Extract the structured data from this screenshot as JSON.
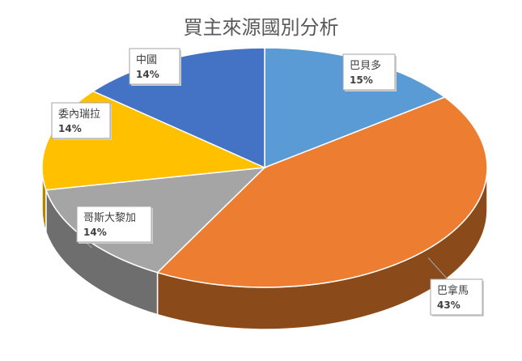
{
  "chart_data": {
    "type": "pie",
    "title": "買主來源國別分析",
    "style": "3d",
    "slices": [
      {
        "label": "巴貝多",
        "value": 15,
        "display": "15%",
        "color": "#5B9BD5",
        "side": "#2F6A9E"
      },
      {
        "label": "巴拿馬",
        "value": 43,
        "display": "43%",
        "color": "#ED7D31",
        "side": "#8B4A1A"
      },
      {
        "label": "哥斯大黎加",
        "value": 14,
        "display": "14%",
        "color": "#A5A5A5",
        "side": "#6E6E6E"
      },
      {
        "label": "委內瑞拉",
        "value": 14,
        "display": "14%",
        "color": "#FFC000",
        "side": "#B38600"
      },
      {
        "label": "中國",
        "value": 14,
        "display": "14%",
        "color": "#4472C4",
        "side": "#2A4A87"
      }
    ]
  }
}
